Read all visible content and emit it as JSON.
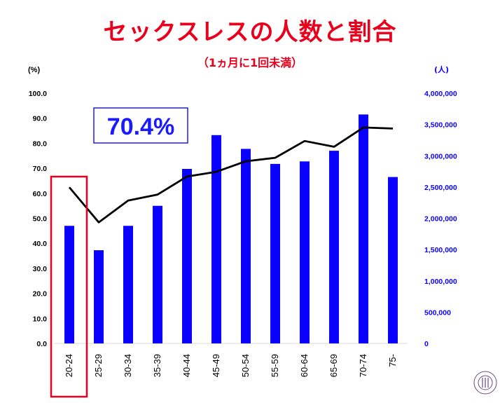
{
  "header": {
    "title": "セックスレスの人数と割合",
    "subtitle": "（1ヵ月に1回未満）"
  },
  "callout": {
    "text": "70.4%"
  },
  "chart_data": {
    "type": "bar+line",
    "categories": [
      "20-24",
      "25-29",
      "30-34",
      "35-39",
      "40-44",
      "45-49",
      "50-54",
      "55-59",
      "60-64",
      "65-69",
      "70-74",
      "75-"
    ],
    "series": [
      {
        "values": [
          1880000,
          1490000,
          1880000,
          2200000,
          2790000,
          3330000,
          3110000,
          2870000,
          2910000,
          3080000,
          3660000,
          2660000
        ],
        "axis": "right",
        "kind": "bar"
      },
      {
        "values": [
          62.4,
          48.4,
          57.1,
          59.5,
          66.7,
          68.6,
          72.8,
          74.2,
          80.9,
          78.6,
          86.3,
          85.9
        ],
        "axis": "left",
        "kind": "line"
      }
    ],
    "left_axis": {
      "unit": "(%)",
      "ylim": [
        0,
        100
      ],
      "ticks": [
        "0.0",
        "10.0",
        "20.0",
        "30.0",
        "40.0",
        "50.0",
        "60.0",
        "70.0",
        "80.0",
        "90.0",
        "100.0"
      ]
    },
    "right_axis": {
      "unit": "(人)",
      "ylim": [
        0,
        4000000
      ],
      "ticks": [
        "0",
        "500,000",
        "1,000,000",
        "1,500,000",
        "2,000,000",
        "2,500,000",
        "3,000,000",
        "3,500,000",
        "4,000,000"
      ]
    },
    "highlight_category": "20-24",
    "grid": false,
    "legend": "none"
  },
  "colors": {
    "title": "#e8001c",
    "bar": "#0a00ff",
    "line": "#000000",
    "right_axis": "#0a00ff",
    "highlight_box": "#e8001c",
    "callout_border": "#1a1aff",
    "callout_text": "#1a1aff"
  },
  "logo": {
    "text": "JUNTENDO UNIVERSITY"
  }
}
